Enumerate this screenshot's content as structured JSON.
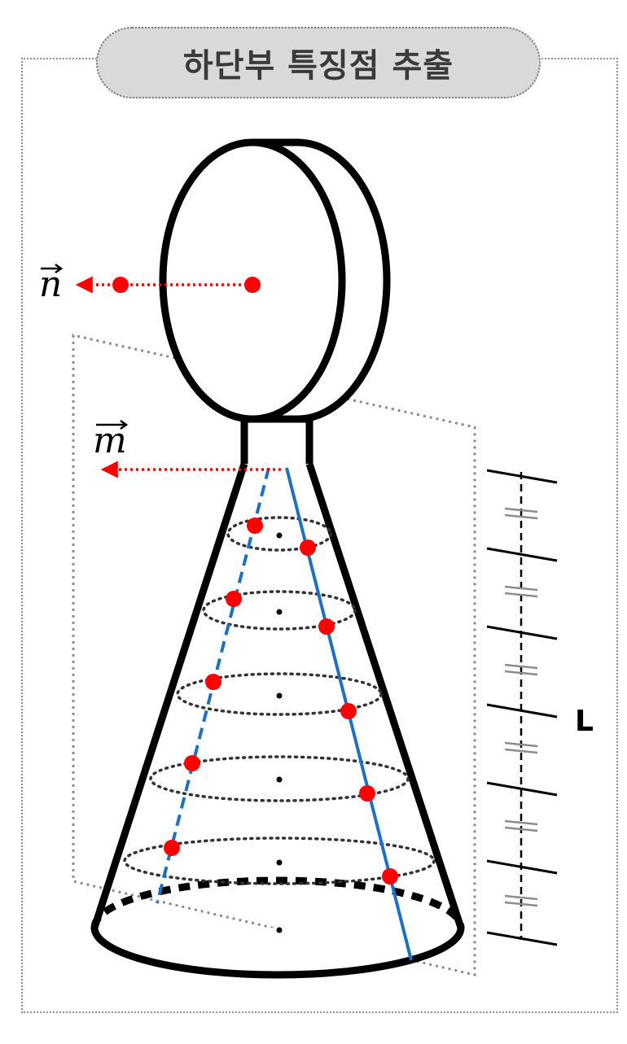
{
  "title": "하단부 특징점 추출",
  "labels": {
    "vector_n": "n",
    "vector_m": "m",
    "length": "L"
  },
  "colors": {
    "outline": "#000000",
    "feature_point": "#ff0000",
    "generatrix": "#1f6fc4",
    "frame": "#8c8c8c",
    "title_background": "#d9d9d9"
  },
  "ruler": {
    "segments": 6,
    "equal_marks": "="
  }
}
